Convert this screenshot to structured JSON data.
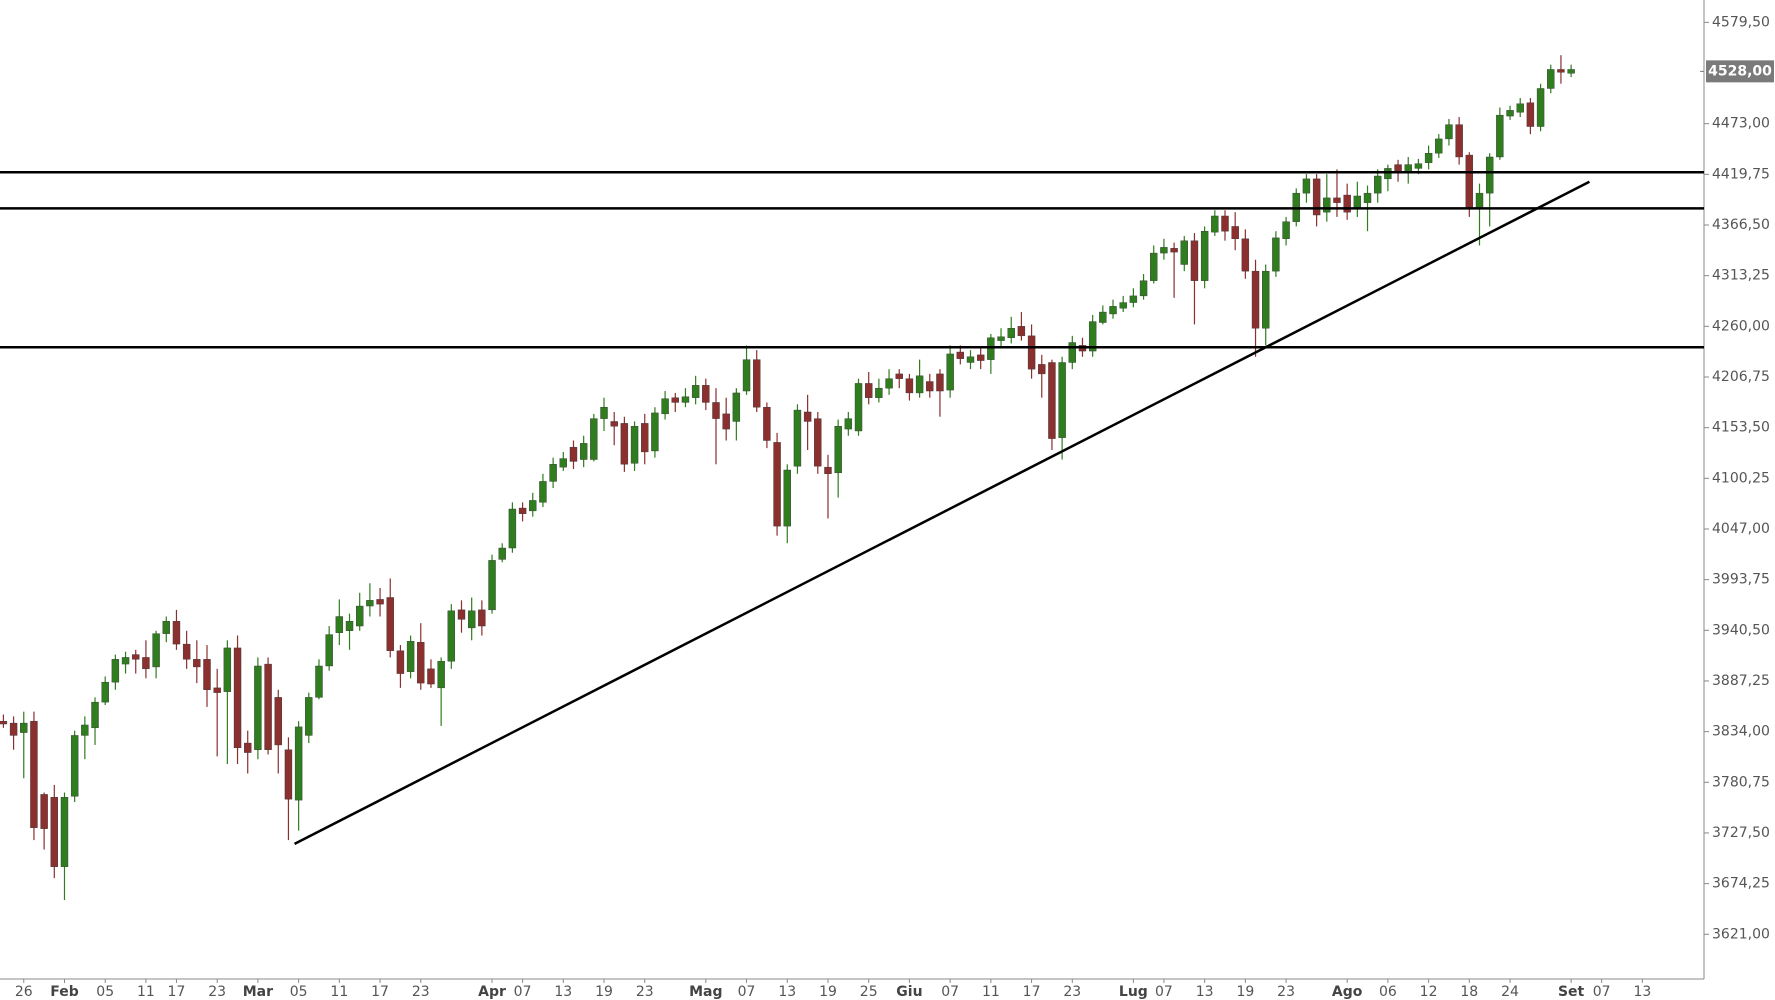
{
  "chart_data": {
    "type": "candlestick",
    "categories": [
      null,
      null,
      "26",
      null,
      null,
      null,
      "Feb",
      null,
      null,
      null,
      "05",
      null,
      null,
      null,
      "11",
      null,
      null,
      "17",
      null,
      null,
      null,
      "23",
      null,
      null,
      null,
      "Mar",
      null,
      null,
      null,
      "05",
      null,
      null,
      null,
      "11",
      null,
      null,
      null,
      "17",
      null,
      null,
      null,
      "23",
      null,
      null,
      null,
      null,
      null,
      null,
      "Apr",
      null,
      null,
      "07",
      null,
      null,
      null,
      "13",
      null,
      null,
      null,
      "19",
      null,
      null,
      null,
      "23",
      null,
      null,
      null,
      null,
      null,
      "Mag",
      null,
      null,
      null,
      "07",
      null,
      null,
      null,
      "13",
      null,
      null,
      null,
      "19",
      null,
      null,
      null,
      "25",
      null,
      null,
      null,
      "Giu",
      null,
      null,
      null,
      "07",
      null,
      null,
      null,
      "11",
      null,
      null,
      null,
      "17",
      null,
      null,
      null,
      "23",
      null,
      null,
      null,
      null,
      null,
      "Lug",
      null,
      null,
      "07",
      null,
      null,
      null,
      "13",
      null,
      null,
      null,
      "19",
      null,
      null,
      null,
      "23",
      null,
      null,
      null,
      null,
      null,
      "Ago",
      null,
      null,
      null,
      "06",
      null,
      null,
      null,
      "12",
      null,
      null,
      null,
      "18",
      null,
      null,
      null,
      "24",
      null,
      null,
      null,
      null,
      null,
      "Set",
      null,
      null,
      "07",
      null,
      null,
      null,
      "13",
      null
    ],
    "open": [
      3845,
      3843,
      3833,
      3845,
      3768,
      3765,
      3692,
      3766,
      3830,
      3838,
      3865,
      3886,
      3905,
      3915,
      3912,
      3902,
      3937,
      3950,
      3926,
      3910,
      3910,
      3880,
      3876,
      3922,
      3822,
      3815,
      3905,
      3870,
      3815,
      3762,
      3830,
      3870,
      3903,
      3938,
      3940,
      3945,
      3966,
      3973,
      3975,
      3919,
      3897,
      3928,
      3900,
      3880,
      3908,
      3962,
      3943,
      3962,
      3962,
      4015,
      4027,
      4069,
      4066,
      4075,
      4097,
      4112,
      4133,
      4120,
      4120,
      4163,
      4160,
      4158,
      4116,
      4158,
      4129,
      4168,
      4185,
      4180,
      4185,
      4198,
      4180,
      4168,
      4160,
      4192,
      4225,
      4175,
      4138,
      4050,
      4113,
      4170,
      4163,
      4112,
      4106,
      4152,
      4150,
      4200,
      4185,
      4195,
      4210,
      4205,
      4190,
      4202,
      4210,
      4193,
      4233,
      4222,
      4230,
      4225,
      4245,
      4248,
      4260,
      4250,
      4220,
      4222,
      4143,
      4222,
      4240,
      4234,
      4264,
      4273,
      4279,
      4285,
      4292,
      4308,
      4337,
      4342,
      4325,
      4350,
      4308,
      4359,
      4376,
      4365,
      4352,
      4318,
      4258,
      4318,
      4352,
      4370,
      4400,
      4415,
      4380,
      4395,
      4398,
      4385,
      4390,
      4400,
      4415,
      4430,
      4422,
      4426,
      4432,
      4442,
      4457,
      4472,
      4440,
      4383,
      4400,
      4438,
      4481,
      4485,
      4495,
      4470,
      4510,
      4530,
      4526,
      null,
      null,
      null,
      null,
      null,
      null,
      null,
      null
    ],
    "high": [
      3852,
      3850,
      3855,
      3855,
      3770,
      3778,
      3770,
      3835,
      3850,
      3870,
      3892,
      3915,
      3918,
      3920,
      3930,
      3940,
      3955,
      3962,
      3940,
      3930,
      3925,
      3900,
      3930,
      3935,
      3835,
      3912,
      3912,
      3878,
      3828,
      3845,
      3875,
      3910,
      3945,
      3973,
      3958,
      3980,
      3990,
      3985,
      3995,
      3925,
      3935,
      3948,
      3910,
      3912,
      3968,
      3972,
      3975,
      3972,
      4020,
      4032,
      4075,
      4075,
      4085,
      4105,
      4122,
      4128,
      4140,
      4145,
      4168,
      4185,
      4170,
      4165,
      4160,
      4168,
      4175,
      4192,
      4190,
      4195,
      4208,
      4205,
      4195,
      4185,
      4195,
      4240,
      4235,
      4180,
      4148,
      4115,
      4178,
      4188,
      4170,
      4125,
      4162,
      4170,
      4205,
      4212,
      4205,
      4215,
      4215,
      4210,
      4225,
      4210,
      4215,
      4240,
      4240,
      4235,
      4238,
      4252,
      4258,
      4270,
      4275,
      4262,
      4230,
      4225,
      4228,
      4250,
      4248,
      4272,
      4282,
      4288,
      4292,
      4300,
      4315,
      4345,
      4352,
      4348,
      4355,
      4358,
      4365,
      4382,
      4382,
      4380,
      4362,
      4330,
      4325,
      4360,
      4375,
      4405,
      4420,
      4420,
      4420,
      4425,
      4410,
      4412,
      4408,
      4425,
      4430,
      4435,
      4438,
      4436,
      4450,
      4462,
      4478,
      4480,
      4443,
      4410,
      4442,
      4490,
      4492,
      4500,
      4500,
      4515,
      4535,
      4545,
      4535,
      null,
      null,
      null,
      null,
      null,
      null,
      null,
      null
    ],
    "low": [
      3838,
      3815,
      3785,
      3720,
      3710,
      3680,
      3657,
      3760,
      3805,
      3820,
      3862,
      3878,
      3895,
      3895,
      3890,
      3890,
      3928,
      3920,
      3900,
      3885,
      3860,
      3808,
      3800,
      3800,
      3790,
      3805,
      3810,
      3790,
      3720,
      3730,
      3822,
      3868,
      3898,
      3925,
      3920,
      3940,
      3955,
      3955,
      3912,
      3880,
      3890,
      3878,
      3880,
      3840,
      3900,
      3938,
      3930,
      3935,
      3958,
      4012,
      4022,
      4055,
      4060,
      4070,
      4090,
      4108,
      4110,
      4112,
      4118,
      4150,
      4135,
      4107,
      4108,
      4115,
      4122,
      4162,
      4170,
      4175,
      4178,
      4172,
      4115,
      4140,
      4140,
      4188,
      4170,
      4132,
      4040,
      4032,
      4105,
      4130,
      4105,
      4058,
      4080,
      4145,
      4145,
      4178,
      4180,
      4188,
      4195,
      4182,
      4185,
      4185,
      4165,
      4185,
      4220,
      4215,
      4215,
      4210,
      4238,
      4242,
      4245,
      4205,
      4185,
      4130,
      4120,
      4215,
      4228,
      4228,
      4262,
      4268,
      4275,
      4280,
      4288,
      4305,
      4330,
      4290,
      4318,
      4262,
      4300,
      4355,
      4350,
      4340,
      4310,
      4228,
      4240,
      4312,
      4345,
      4365,
      4390,
      4365,
      4370,
      4375,
      4372,
      4375,
      4360,
      4390,
      4402,
      4412,
      4410,
      4420,
      4425,
      4437,
      4450,
      4430,
      4375,
      4345,
      4365,
      4435,
      4477,
      4480,
      4462,
      4465,
      4505,
      4515,
      4522,
      null,
      null,
      null,
      null,
      null,
      null,
      null,
      null
    ],
    "close": [
      3842,
      3830,
      3843,
      3733,
      3732,
      3692,
      3765,
      3830,
      3841,
      3865,
      3886,
      3910,
      3912,
      3910,
      3900,
      3937,
      3950,
      3926,
      3910,
      3902,
      3878,
      3875,
      3922,
      3817,
      3812,
      3903,
      3815,
      3820,
      3763,
      3839,
      3870,
      3903,
      3936,
      3955,
      3950,
      3966,
      3972,
      3968,
      3919,
      3895,
      3929,
      3885,
      3884,
      3908,
      3961,
      3952,
      3961,
      3945,
      4014,
      4027,
      4068,
      4063,
      4077,
      4097,
      4115,
      4121,
      4118,
      4137,
      4163,
      4175,
      4155,
      4115,
      4155,
      4128,
      4169,
      4184,
      4180,
      4186,
      4198,
      4180,
      4163,
      4152,
      4190,
      4225,
      4175,
      4140,
      4050,
      4109,
      4172,
      4160,
      4113,
      4105,
      4155,
      4163,
      4200,
      4185,
      4195,
      4205,
      4205,
      4190,
      4208,
      4192,
      4192,
      4231,
      4226,
      4228,
      4224,
      4248,
      4249,
      4258,
      4250,
      4215,
      4210,
      4142,
      4222,
      4243,
      4234,
      4265,
      4275,
      4281,
      4285,
      4292,
      4308,
      4337,
      4343,
      4338,
      4350,
      4308,
      4360,
      4376,
      4360,
      4352,
      4318,
      4258,
      4318,
      4353,
      4370,
      4400,
      4415,
      4377,
      4395,
      4390,
      4380,
      4397,
      4400,
      4418,
      4426,
      4422,
      4430,
      4431,
      4442,
      4457,
      4472,
      4438,
      4383,
      4400,
      4438,
      4482,
      4487,
      4494,
      4470,
      4510,
      4530,
      4527,
      4530,
      null,
      null,
      null,
      null,
      null,
      null,
      null,
      null
    ],
    "up_color": "#2f7d1f",
    "down_color": "#8b2f2f",
    "ylim": [
      3574,
      4603
    ],
    "yticks": [
      {
        "value": 4579.5,
        "label": "4579,50"
      },
      {
        "value": 4473,
        "label": "4473,00"
      },
      {
        "value": 4419.75,
        "label": "4419,75"
      },
      {
        "value": 4366.5,
        "label": "4366,50"
      },
      {
        "value": 4313.25,
        "label": "4313,25"
      },
      {
        "value": 4260,
        "label": "4260,00"
      },
      {
        "value": 4206.75,
        "label": "4206,75"
      },
      {
        "value": 4153.5,
        "label": "4153,50"
      },
      {
        "value": 4100.25,
        "label": "4100,25"
      },
      {
        "value": 4047,
        "label": "4047,00"
      },
      {
        "value": 3993.75,
        "label": "3993,75"
      },
      {
        "value": 3940.5,
        "label": "3940,50"
      },
      {
        "value": 3887.25,
        "label": "3887,25"
      },
      {
        "value": 3834,
        "label": "3834,00"
      },
      {
        "value": 3780.75,
        "label": "3780,75"
      },
      {
        "value": 3727.5,
        "label": "3727,50"
      },
      {
        "value": 3674.25,
        "label": "3674,25"
      },
      {
        "value": 3621,
        "label": "3621,00"
      }
    ],
    "last_price": {
      "value": 4528,
      "label": "4528,00"
    },
    "levels": [
      4422,
      4384,
      4238
    ],
    "trendline": {
      "x": [
        28.6,
        155.8
      ],
      "y": [
        3716,
        4412
      ]
    },
    "grid": false
  }
}
